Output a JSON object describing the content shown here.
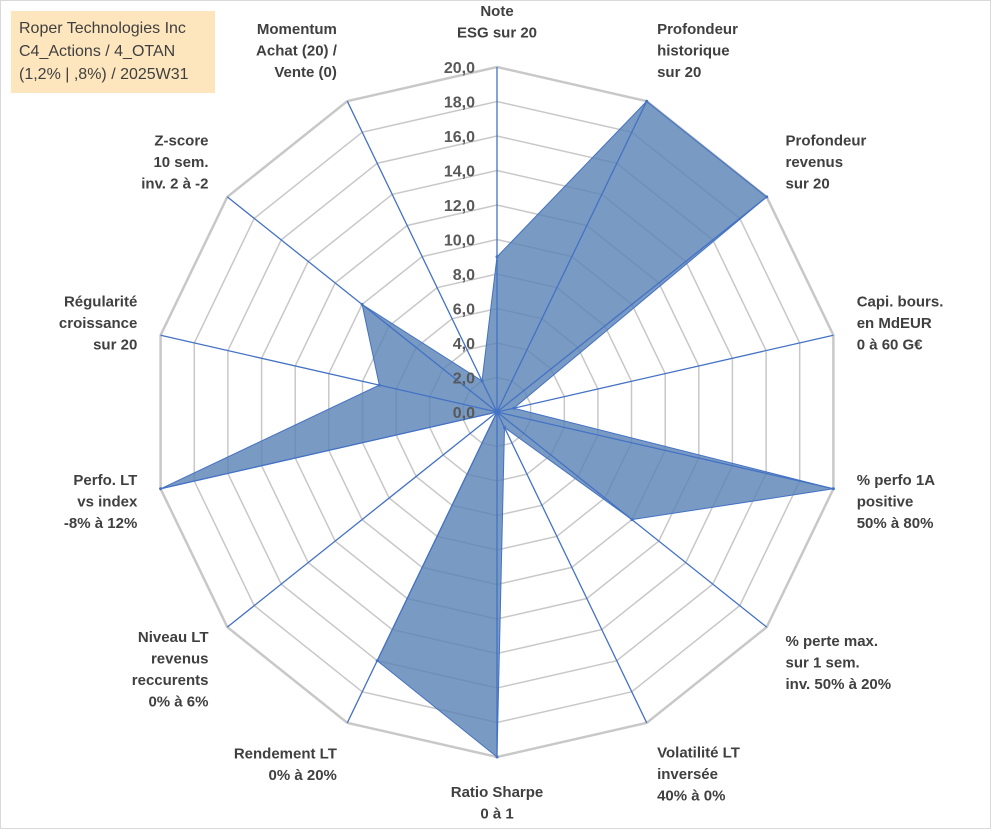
{
  "title_lines": [
    "Roper Technologies Inc",
    "C4_Actions / 4_OTAN",
    "(1,2% | ,8%) / 2025W31"
  ],
  "colors": {
    "fill": "#5b84b6",
    "series_line": "#4472c4",
    "spoke": "#4472c4",
    "grid": "#c8c8c8",
    "title_bg": "#fde6bd"
  },
  "chart_data": {
    "type": "radar",
    "rmin": 0,
    "rmax": 20,
    "tick_step": 2,
    "tick_labels": [
      "0,0",
      "2,0",
      "4,0",
      "6,0",
      "8,0",
      "10,0",
      "12,0",
      "14,0",
      "16,0",
      "18,0",
      "20,0"
    ],
    "grid": true,
    "legend": "none",
    "categories": [
      [
        "Note",
        "ESG sur 20"
      ],
      [
        "Profondeur",
        "historique",
        "sur 20"
      ],
      [
        "Profondeur",
        "revenus",
        "sur 20"
      ],
      [
        "Capi. bours.",
        "en MdEUR",
        "0 à 60 G€"
      ],
      [
        "% perfo 1A",
        "positive",
        "50% à 80%"
      ],
      [
        "% perte max.",
        "sur 1 sem.",
        "inv. 50% à 20%"
      ],
      [
        "Volatilité LT",
        "inversée",
        "40% à 0%"
      ],
      [
        "Ratio Sharpe",
        "0 à 1"
      ],
      [
        "Rendement LT",
        "0% à 20%"
      ],
      [
        "Niveau LT",
        "revenus",
        "reccurents",
        "0% à 6%"
      ],
      [
        "Perfo. LT",
        "vs index",
        "-8% à 12%"
      ],
      [
        "Régularité",
        "croissance",
        "sur 20"
      ],
      [
        "Z-score",
        "10 sem.",
        "inv. 2 à -2"
      ],
      [
        "Momentum",
        "Achat (20) /",
        "Vente (0)"
      ]
    ],
    "values": [
      9.0,
      20.0,
      20.0,
      1.0,
      20.0,
      10.0,
      1.0,
      20.0,
      16.0,
      0.0,
      20.0,
      7.0,
      10.0,
      2.0
    ]
  }
}
